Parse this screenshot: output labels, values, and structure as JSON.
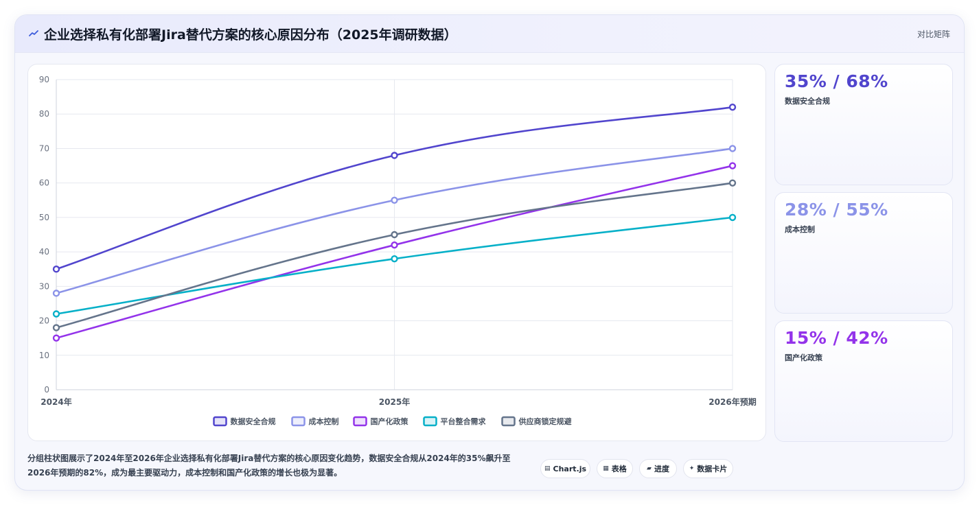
{
  "header": {
    "title": "企业选择私有化部署Jira替代方案的核心原因分布（2025年调研数据）",
    "matrix_link": "对比矩阵",
    "icon": "chart-line-icon"
  },
  "colors": {
    "accent": "#4f46e5",
    "series": [
      "#5145cd",
      "#8b93e8",
      "#9333ea",
      "#06b0c8",
      "#64748b"
    ]
  },
  "chart_data": {
    "type": "line",
    "title": "",
    "xlabel": "",
    "ylabel": "",
    "x": [
      "2024年",
      "2025年",
      "2026年预期"
    ],
    "ylim": [
      0,
      90
    ],
    "yticks": [
      0,
      10,
      20,
      30,
      40,
      50,
      60,
      70,
      80,
      90
    ],
    "grid": true,
    "legend_position": "bottom",
    "series": [
      {
        "name": "数据安全合规",
        "values": [
          35,
          68,
          82
        ],
        "color": "#5145cd"
      },
      {
        "name": "成本控制",
        "values": [
          28,
          55,
          70
        ],
        "color": "#8b93e8"
      },
      {
        "name": "国产化政策",
        "values": [
          15,
          42,
          65
        ],
        "color": "#9333ea"
      },
      {
        "name": "平台整合需求",
        "values": [
          22,
          38,
          50
        ],
        "color": "#06b0c8"
      },
      {
        "name": "供应商锁定规避",
        "values": [
          18,
          45,
          60
        ],
        "color": "#64748b"
      }
    ]
  },
  "stats": [
    {
      "value": "35% / 68%",
      "label": "数据安全合规",
      "color": "#5145cd"
    },
    {
      "value": "28% / 55%",
      "label": "成本控制",
      "color": "#8b93e8"
    },
    {
      "value": "15% / 42%",
      "label": "国产化政策",
      "color": "#9333ea"
    }
  ],
  "footer": {
    "description": "分组柱状图展示了2024年至2026年企业选择私有化部署Jira替代方案的核心原因变化趋势，数据安全合规从2024年的35%飙升至2026年预期的82%，成为最主要驱动力，成本控制和国产化政策的增长也极为显著。",
    "buttons": [
      {
        "label": "Chart.js",
        "icon": "▤"
      },
      {
        "label": "表格",
        "icon": "▦"
      },
      {
        "label": "进度",
        "icon": "▰"
      },
      {
        "label": "数据卡片",
        "icon": "✦"
      }
    ]
  }
}
